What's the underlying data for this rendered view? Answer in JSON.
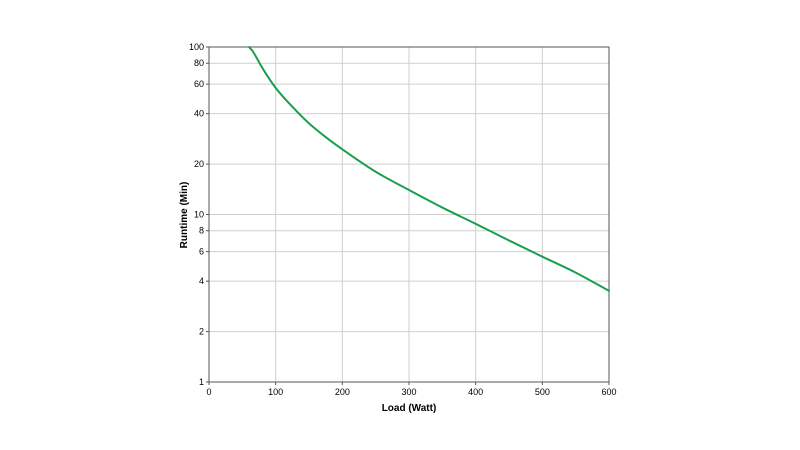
{
  "chart_data": {
    "type": "line",
    "title": "",
    "xlabel": "Load (Watt)",
    "ylabel": "Runtime (Min)",
    "xlim": [
      0,
      600
    ],
    "ylim": [
      1,
      100
    ],
    "y_scale": "log",
    "grid": true,
    "legend": "none",
    "x_ticks": [
      0,
      100,
      200,
      300,
      400,
      500,
      600
    ],
    "x_tick_labels": [
      "0",
      "100",
      "200",
      "300",
      "400",
      "500",
      "600"
    ],
    "y_ticks": [
      1,
      2,
      4,
      6,
      8,
      10,
      20,
      40,
      60,
      80,
      100
    ],
    "y_tick_labels": [
      "1",
      "2",
      "4",
      "6",
      "8",
      "10",
      "20",
      "40",
      "60",
      "80",
      "100"
    ],
    "series": [
      {
        "color": "#1a9e50",
        "x": [
          60,
          65,
          80,
          100,
          125,
          150,
          175,
          200,
          250,
          300,
          350,
          400,
          450,
          500,
          550,
          600
        ],
        "y": [
          100,
          95,
          75,
          57,
          44,
          35,
          29,
          24.5,
          18,
          14,
          11,
          8.8,
          7,
          5.6,
          4.5,
          3.5
        ]
      }
    ]
  }
}
